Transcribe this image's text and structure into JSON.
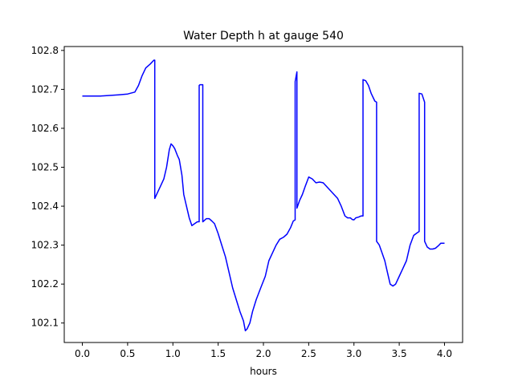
{
  "chart_data": {
    "type": "line",
    "title": "Water Depth h at gauge 540",
    "xlabel": "hours",
    "ylabel": "",
    "xlim": [
      -0.2,
      4.2
    ],
    "ylim": [
      102.05,
      102.81
    ],
    "xticks": [
      0.0,
      0.5,
      1.0,
      1.5,
      2.0,
      2.5,
      3.0,
      3.5,
      4.0
    ],
    "xtick_labels": [
      "0.0",
      "0.5",
      "1.0",
      "1.5",
      "2.0",
      "2.5",
      "3.0",
      "3.5",
      "4.0"
    ],
    "yticks": [
      102.1,
      102.2,
      102.3,
      102.4,
      102.5,
      102.6,
      102.7,
      102.8
    ],
    "ytick_labels": [
      "102.1",
      "102.2",
      "102.3",
      "102.4",
      "102.5",
      "102.6",
      "102.7",
      "102.8"
    ],
    "grid": false,
    "legend": "none",
    "series": [
      {
        "color": "#0000ff",
        "x": [
          0.0,
          0.2,
          0.4,
          0.5,
          0.58,
          0.62,
          0.66,
          0.7,
          0.75,
          0.79,
          0.8,
          0.8,
          0.83,
          0.86,
          0.9,
          0.93,
          0.96,
          0.98,
          1.0,
          1.02,
          1.05,
          1.07,
          1.1,
          1.12,
          1.15,
          1.18,
          1.21,
          1.24,
          1.27,
          1.29,
          1.29,
          1.3,
          1.33,
          1.33,
          1.37,
          1.4,
          1.43,
          1.46,
          1.5,
          1.54,
          1.58,
          1.62,
          1.66,
          1.7,
          1.74,
          1.78,
          1.8,
          1.82,
          1.85,
          1.88,
          1.92,
          1.97,
          2.02,
          2.06,
          2.1,
          2.14,
          2.18,
          2.22,
          2.26,
          2.3,
          2.33,
          2.35,
          2.35,
          2.37,
          2.37,
          2.4,
          2.43,
          2.46,
          2.5,
          2.54,
          2.58,
          2.62,
          2.66,
          2.7,
          2.74,
          2.78,
          2.82,
          2.86,
          2.9,
          2.93,
          2.96,
          2.98,
          3.0,
          3.02,
          3.05,
          3.08,
          3.1,
          3.1,
          3.13,
          3.16,
          3.19,
          3.23,
          3.25,
          3.25,
          3.28,
          3.31,
          3.34,
          3.37,
          3.4,
          3.43,
          3.46,
          3.5,
          3.54,
          3.58,
          3.62,
          3.66,
          3.7,
          3.72,
          3.72,
          3.75,
          3.78,
          3.78,
          3.81,
          3.84,
          3.87,
          3.9,
          3.93,
          3.96,
          4.0
        ],
        "y": [
          102.683,
          102.683,
          102.686,
          102.688,
          102.693,
          102.71,
          102.735,
          102.755,
          102.765,
          102.775,
          102.775,
          102.42,
          102.435,
          102.45,
          102.47,
          102.5,
          102.545,
          102.56,
          102.555,
          102.548,
          102.53,
          102.52,
          102.48,
          102.43,
          102.4,
          102.37,
          102.35,
          102.355,
          102.36,
          102.36,
          102.71,
          102.712,
          102.712,
          102.36,
          102.368,
          102.368,
          102.362,
          102.355,
          102.33,
          102.3,
          102.27,
          102.23,
          102.19,
          102.16,
          102.13,
          102.105,
          102.08,
          102.085,
          102.1,
          102.13,
          102.16,
          102.19,
          102.22,
          102.26,
          102.28,
          102.3,
          102.315,
          102.32,
          102.328,
          102.345,
          102.362,
          102.365,
          102.72,
          102.745,
          102.395,
          102.415,
          102.43,
          102.45,
          102.475,
          102.47,
          102.46,
          102.462,
          102.46,
          102.45,
          102.44,
          102.43,
          102.42,
          102.4,
          102.375,
          102.37,
          102.37,
          102.366,
          102.365,
          102.37,
          102.372,
          102.375,
          102.375,
          102.725,
          102.722,
          102.71,
          102.69,
          102.67,
          102.667,
          102.31,
          102.3,
          102.28,
          102.26,
          102.23,
          102.2,
          102.195,
          102.2,
          102.22,
          102.24,
          102.26,
          102.3,
          102.325,
          102.332,
          102.335,
          102.69,
          102.688,
          102.667,
          102.31,
          102.295,
          102.29,
          102.29,
          102.292,
          102.298,
          102.305,
          102.305
        ]
      }
    ]
  }
}
